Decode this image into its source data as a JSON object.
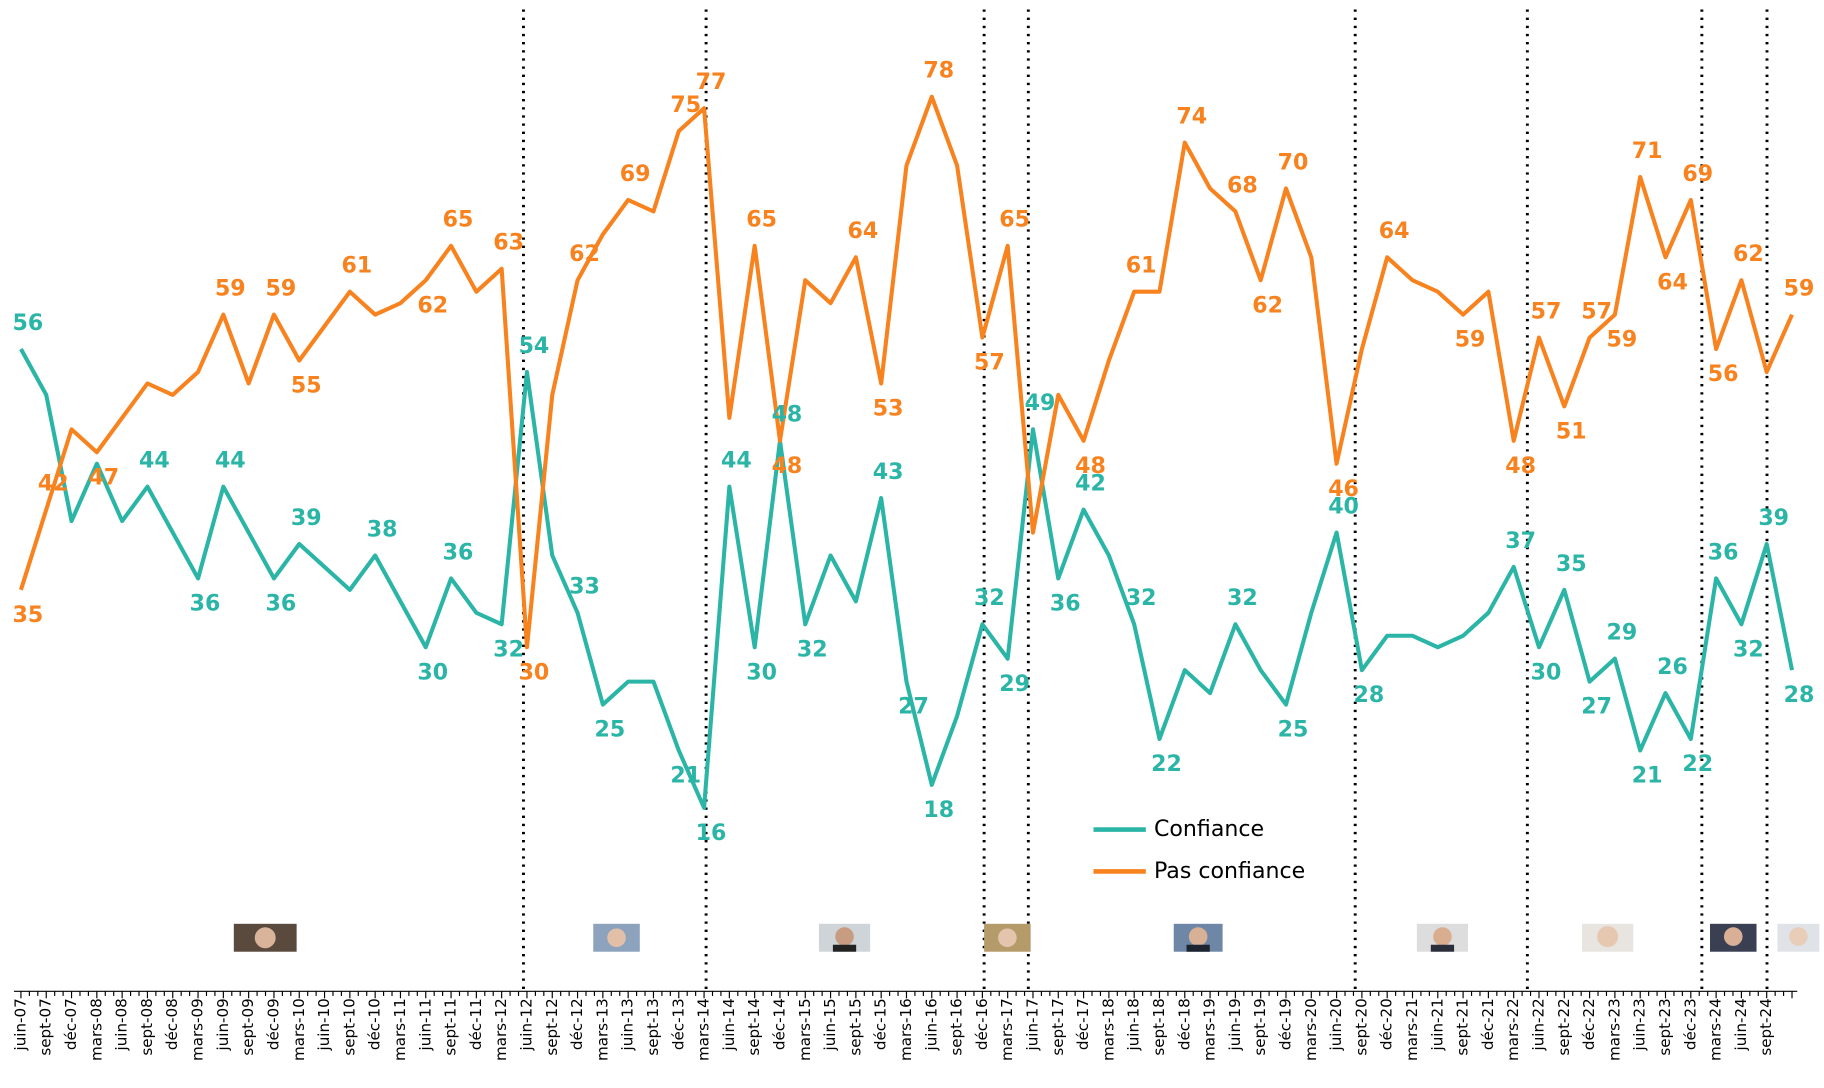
{
  "chart_data": {
    "type": "line",
    "categories": [
      "juin-07",
      "sept-07",
      "déc-07",
      "mars-08",
      "juin-08",
      "sept-08",
      "déc-08",
      "mars-09",
      "juin-09",
      "sept-09",
      "déc-09",
      "mars-10",
      "juin-10",
      "sept-10",
      "déc-10",
      "mars-11",
      "juin-11",
      "sept-11",
      "déc-11",
      "mars-12",
      "juin-12",
      "sept-12",
      "déc-12",
      "mars-13",
      "juin-13",
      "sept-13",
      "déc-13",
      "mars-14",
      "juin-14",
      "sept-14",
      "déc-14",
      "mars-15",
      "juin-15",
      "sept-15",
      "déc-15",
      "mars-16",
      "juin-16",
      "sept-16",
      "déc-16",
      "mars-17",
      "juin-17",
      "sept-17",
      "déc-17",
      "mars-18",
      "juin-18",
      "sept-18",
      "déc-18",
      "mars-19",
      "juin-19",
      "sept-19",
      "déc-19",
      "mars-20",
      "juin-20",
      "sept-20",
      "déc-20",
      "mars-21",
      "juin-21",
      "sept-21",
      "déc-21",
      "mars-22",
      "juin-22",
      "sept-22",
      "déc-22",
      "mars-23",
      "juin-23",
      "sept-23",
      "déc-23",
      "mars-24",
      "juin-24",
      "sept-24",
      null
    ],
    "series": [
      {
        "name": "Confiance",
        "color": "#2bb5a6",
        "values": [
          56,
          52,
          41,
          46,
          41,
          44,
          40,
          36,
          44,
          40,
          36,
          39,
          37,
          35,
          38,
          34,
          30,
          36,
          33,
          32,
          54,
          38,
          33,
          25,
          27,
          27,
          21,
          16,
          44,
          30,
          48,
          32,
          38,
          34,
          43,
          27,
          18,
          24,
          32,
          29,
          49,
          36,
          42,
          38,
          32,
          22,
          28,
          26,
          32,
          28,
          25,
          33,
          40,
          28,
          31,
          31,
          30,
          31,
          33,
          37,
          30,
          35,
          27,
          29,
          21,
          26,
          22,
          36,
          32,
          39,
          28
        ],
        "data_labels": [
          56,
          null,
          null,
          null,
          null,
          44,
          null,
          36,
          44,
          null,
          36,
          39,
          null,
          null,
          38,
          null,
          30,
          36,
          null,
          32,
          54,
          null,
          33,
          25,
          null,
          null,
          21,
          16,
          44,
          30,
          48,
          32,
          null,
          null,
          43,
          27,
          18,
          null,
          32,
          29,
          49,
          36,
          42,
          null,
          32,
          22,
          null,
          null,
          32,
          null,
          25,
          null,
          40,
          28,
          null,
          null,
          null,
          null,
          null,
          37,
          30,
          35,
          27,
          29,
          21,
          26,
          22,
          36,
          32,
          39,
          28
        ]
      },
      {
        "name": "Pas confiance",
        "color": "#f7821e",
        "values": [
          35,
          42,
          49,
          47,
          50,
          53,
          52,
          54,
          59,
          53,
          59,
          55,
          58,
          61,
          59,
          60,
          62,
          65,
          61,
          63,
          30,
          52,
          62,
          66,
          69,
          68,
          75,
          77,
          50,
          65,
          48,
          62,
          60,
          64,
          53,
          72,
          78,
          72,
          57,
          65,
          40,
          52,
          48,
          55,
          61,
          61,
          74,
          70,
          68,
          62,
          70,
          64,
          46,
          56,
          64,
          62,
          61,
          59,
          61,
          48,
          57,
          51,
          57,
          59,
          71,
          64,
          69,
          56,
          62,
          54,
          59
        ],
        "data_labels": [
          35,
          42,
          null,
          47,
          null,
          null,
          null,
          null,
          59,
          null,
          59,
          55,
          null,
          61,
          null,
          null,
          62,
          65,
          null,
          63,
          30,
          null,
          62,
          null,
          69,
          null,
          75,
          77,
          null,
          65,
          48,
          null,
          null,
          64,
          53,
          null,
          78,
          null,
          57,
          65,
          null,
          null,
          48,
          null,
          61,
          null,
          74,
          null,
          68,
          62,
          70,
          null,
          46,
          null,
          64,
          null,
          null,
          59,
          null,
          48,
          57,
          51,
          57,
          59,
          71,
          64,
          69,
          56,
          62,
          null,
          59
        ]
      }
    ],
    "ylim": [
      0,
      85
    ]
  }
}
